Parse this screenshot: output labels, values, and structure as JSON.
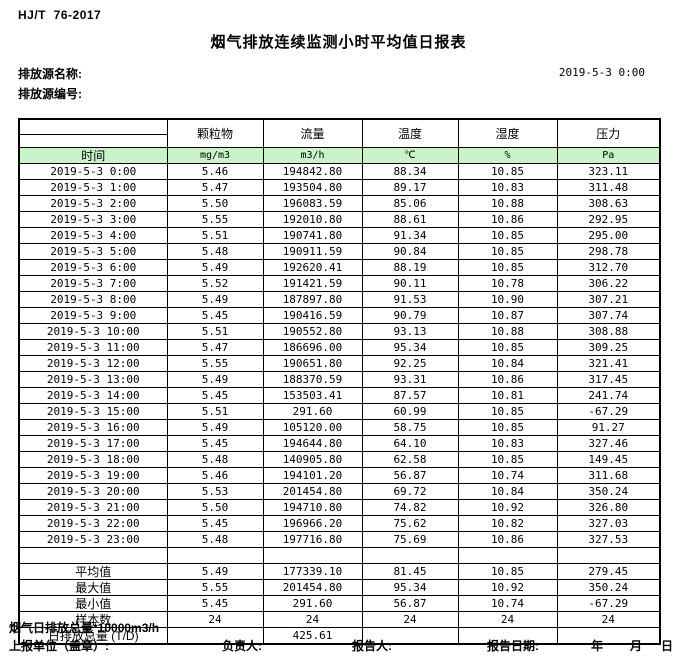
{
  "header": {
    "standard": "HJ/T  76-2017",
    "title": "烟气排放连续监测小时平均值日报表",
    "source_name_label": "排放源名称:",
    "source_code_label": "排放源编号:",
    "datetime": "2019-5-3 0:00"
  },
  "table": {
    "time_header": "时间",
    "columns": [
      {
        "name": "颗粒物",
        "unit": "mg/m3"
      },
      {
        "name": "流量",
        "unit": "m3/h"
      },
      {
        "name": "温度",
        "unit": "℃"
      },
      {
        "name": "湿度",
        "unit": "%"
      },
      {
        "name": "压力",
        "unit": "Pa"
      }
    ],
    "rows": [
      {
        "time": "2019-5-3 0:00",
        "values": [
          "5.46",
          "194842.80",
          "88.34",
          "10.85",
          "323.11"
        ]
      },
      {
        "time": "2019-5-3 1:00",
        "values": [
          "5.47",
          "193504.80",
          "89.17",
          "10.83",
          "311.48"
        ]
      },
      {
        "time": "2019-5-3 2:00",
        "values": [
          "5.50",
          "196083.59",
          "85.06",
          "10.88",
          "308.63"
        ]
      },
      {
        "time": "2019-5-3 3:00",
        "values": [
          "5.55",
          "192010.80",
          "88.61",
          "10.86",
          "292.95"
        ]
      },
      {
        "time": "2019-5-3 4:00",
        "values": [
          "5.51",
          "190741.80",
          "91.34",
          "10.85",
          "295.00"
        ]
      },
      {
        "time": "2019-5-3 5:00",
        "values": [
          "5.48",
          "190911.59",
          "90.84",
          "10.85",
          "298.78"
        ]
      },
      {
        "time": "2019-5-3 6:00",
        "values": [
          "5.49",
          "192620.41",
          "88.19",
          "10.85",
          "312.70"
        ]
      },
      {
        "time": "2019-5-3 7:00",
        "values": [
          "5.52",
          "191421.59",
          "90.11",
          "10.78",
          "306.22"
        ]
      },
      {
        "time": "2019-5-3 8:00",
        "values": [
          "5.49",
          "187897.80",
          "91.53",
          "10.90",
          "307.21"
        ]
      },
      {
        "time": "2019-5-3 9:00",
        "values": [
          "5.45",
          "190416.59",
          "90.79",
          "10.87",
          "307.74"
        ]
      },
      {
        "time": "2019-5-3 10:00",
        "values": [
          "5.51",
          "190552.80",
          "93.13",
          "10.88",
          "308.88"
        ]
      },
      {
        "time": "2019-5-3 11:00",
        "values": [
          "5.47",
          "186696.00",
          "95.34",
          "10.85",
          "309.25"
        ]
      },
      {
        "time": "2019-5-3 12:00",
        "values": [
          "5.55",
          "190651.80",
          "92.25",
          "10.84",
          "321.41"
        ]
      },
      {
        "time": "2019-5-3 13:00",
        "values": [
          "5.49",
          "188370.59",
          "93.31",
          "10.86",
          "317.45"
        ]
      },
      {
        "time": "2019-5-3 14:00",
        "values": [
          "5.45",
          "153503.41",
          "87.57",
          "10.81",
          "241.74"
        ]
      },
      {
        "time": "2019-5-3 15:00",
        "values": [
          "5.51",
          "291.60",
          "60.99",
          "10.85",
          "-67.29"
        ]
      },
      {
        "time": "2019-5-3 16:00",
        "values": [
          "5.49",
          "105120.00",
          "58.75",
          "10.85",
          "91.27"
        ]
      },
      {
        "time": "2019-5-3 17:00",
        "values": [
          "5.45",
          "194644.80",
          "64.10",
          "10.83",
          "327.46"
        ]
      },
      {
        "time": "2019-5-3 18:00",
        "values": [
          "5.48",
          "140905.80",
          "62.58",
          "10.85",
          "149.45"
        ]
      },
      {
        "time": "2019-5-3 19:00",
        "values": [
          "5.46",
          "194101.20",
          "56.87",
          "10.74",
          "311.68"
        ]
      },
      {
        "time": "2019-5-3 20:00",
        "values": [
          "5.53",
          "201454.80",
          "69.72",
          "10.84",
          "350.24"
        ]
      },
      {
        "time": "2019-5-3 21:00",
        "values": [
          "5.50",
          "194710.80",
          "74.82",
          "10.92",
          "326.80"
        ]
      },
      {
        "time": "2019-5-3 22:00",
        "values": [
          "5.45",
          "196966.20",
          "75.62",
          "10.82",
          "327.03"
        ]
      },
      {
        "time": "2019-5-3 23:00",
        "values": [
          "5.48",
          "197716.80",
          "75.69",
          "10.86",
          "327.53"
        ]
      }
    ],
    "summary": [
      {
        "label": "平均值",
        "values": [
          "5.49",
          "177339.10",
          "81.45",
          "10.85",
          "279.45"
        ]
      },
      {
        "label": "最大值",
        "values": [
          "5.55",
          "201454.80",
          "95.34",
          "10.92",
          "350.24"
        ]
      },
      {
        "label": "最小值",
        "values": [
          "5.45",
          "291.60",
          "56.87",
          "10.74",
          "-67.29"
        ]
      },
      {
        "label": "样本数",
        "values": [
          "24",
          "24",
          "24",
          "24",
          "24"
        ]
      },
      {
        "label": "日排放总量 (T/D)",
        "values": [
          "",
          "425.61",
          "",
          "",
          ""
        ]
      }
    ]
  },
  "footer": {
    "note": "烟气日排放总量*10000m3/h",
    "report_unit_label": "上报单位（盖章）:",
    "responsible_label": "负责人:",
    "reporter_label": "报告人:",
    "report_date_label": "报告日期:",
    "year_label": "年",
    "month_label": "月",
    "day_label": "日"
  },
  "colors": {
    "header_green": "#caf3ca"
  }
}
